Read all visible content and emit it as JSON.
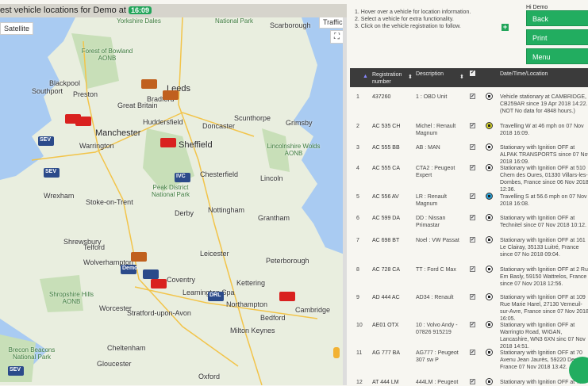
{
  "header": {
    "title": "est vehicle locations for Demo at",
    "time": "16:09"
  },
  "map": {
    "satellite_label": "Satellite",
    "traffic_label": "Traffic",
    "places": [
      {
        "name": "Leeds",
        "big": true
      },
      {
        "name": "Bradford"
      },
      {
        "name": "Manchester",
        "big": true
      },
      {
        "name": "Sheffield",
        "big": true
      },
      {
        "name": "Blackpool"
      },
      {
        "name": "Preston"
      },
      {
        "name": "Huddersfield"
      },
      {
        "name": "Warrington"
      },
      {
        "name": "Doncaster"
      },
      {
        "name": "Scunthorpe"
      },
      {
        "name": "Grimsby"
      },
      {
        "name": "Lincoln"
      },
      {
        "name": "Chesterfield"
      },
      {
        "name": "Stoke-on-Trent"
      },
      {
        "name": "Derby"
      },
      {
        "name": "Nottingham"
      },
      {
        "name": "Grantham"
      },
      {
        "name": "Wrexham"
      },
      {
        "name": "Shrewsbury"
      },
      {
        "name": "Leicester"
      },
      {
        "name": "Peterborough"
      },
      {
        "name": "Wolverhampton"
      },
      {
        "name": "Coventry"
      },
      {
        "name": "Northampton"
      },
      {
        "name": "Cambridge"
      },
      {
        "name": "Kettering"
      },
      {
        "name": "Bedford"
      },
      {
        "name": "Milton Keynes"
      },
      {
        "name": "Worcester"
      },
      {
        "name": "Cheltenham"
      },
      {
        "name": "Gloucester"
      },
      {
        "name": "Southport"
      },
      {
        "name": "Scarborough"
      },
      {
        "name": "Oxford"
      },
      {
        "name": "Telford"
      },
      {
        "name": "Great Britain"
      },
      {
        "name": "Stratford-upon-Avon"
      },
      {
        "name": "Leamington Spa"
      }
    ],
    "parks": [
      "Forest of Bowland AONB",
      "Peak District National Park",
      "Lincolnshire Wolds AONB",
      "Shropshire Hills AONB",
      "Brecon Beacons National Park",
      "Yorkshire Dales",
      "National Park"
    ],
    "vehicles": [
      {
        "label": "",
        "color": "#c0601e"
      },
      {
        "label": "",
        "color": "#c0601e"
      },
      {
        "label": "",
        "color": "#d9211f"
      },
      {
        "label": "SEV",
        "color": "#2b4a8a"
      },
      {
        "label": "",
        "color": "#d9211f"
      },
      {
        "label": "SEV",
        "color": "#2b4a8a"
      },
      {
        "label": "IVC",
        "color": "#2b4a8a"
      },
      {
        "label": "",
        "color": "#d9211f"
      },
      {
        "label": "Demo",
        "color": "#2b4a8a"
      },
      {
        "label": "",
        "color": "#c0601e"
      },
      {
        "label": "DRL",
        "color": "#2b4a8a"
      },
      {
        "label": "",
        "color": "#d9211f"
      },
      {
        "label": "",
        "color": "#d9211f"
      },
      {
        "label": "",
        "color": "#2b4a8a"
      },
      {
        "label": "SEV",
        "color": "#2b4a8a"
      }
    ]
  },
  "instructions": [
    "1. Hover over a vehicle for location information.",
    "2. Select a vehicle for extra functionality.",
    "3. Click on the vehicle registration to follow."
  ],
  "user": "Hi Demo",
  "buttons": {
    "back": "Back",
    "print": "Print",
    "menu": "Menu"
  },
  "table": {
    "headers": {
      "registration": "Registration number",
      "description": "Description",
      "datetime": "Date/Time/Location"
    },
    "rows": [
      {
        "n": "1",
        "reg": "437260",
        "desc": "1 : OBD Unit",
        "status": "paused",
        "loc": "Vehicle stationary at CAMBRIDGE, CB259AR since 19 Apr 2018 14:22. (NOT No data for 4848 hours.)"
      },
      {
        "n": "2",
        "reg": "AC 535 CH",
        "desc": "Michel : Renault Magnum",
        "status": "travelling-w",
        "loc": "Travelling W at 46 mph on 07 Nov 2018 16:09."
      },
      {
        "n": "3",
        "reg": "AC 555 BB",
        "desc": "AB : MAN",
        "status": "stopped",
        "loc": "Stationary with Ignition OFF at ALPAK TRANSPORTS since 07 Nov 2018 16:09."
      },
      {
        "n": "4",
        "reg": "AC 555 CA",
        "desc": "CTA2 : Peugeot Expert",
        "status": "stopped",
        "loc": "Stationary with Ignition OFF at 510 Chem des Oures, 01330 Villars-les-Dombes, France since 06 Nov 2018 12:36."
      },
      {
        "n": "5",
        "reg": "AC 556 AV",
        "desc": "LR : Renault Magnum",
        "status": "travelling-s",
        "loc": "Travelling S at 56.6 mph on 07 Nov 2018 16:08."
      },
      {
        "n": "6",
        "reg": "AC 599 DA",
        "desc": "DD : Nissan Primastar",
        "status": "stopped",
        "loc": "Stationary with Ignition OFF at Technitel since 07 Nov 2018 10:12."
      },
      {
        "n": "7",
        "reg": "AC 698 BT",
        "desc": "Noel : VW Passat",
        "status": "stopped",
        "loc": "Stationary with Ignition OFF at 161 Le Clairay, 35133 Luitré, France since 07 No 2018 09:04."
      },
      {
        "n": "8",
        "reg": "AC 728 CA",
        "desc": "TT : Ford C Max",
        "status": "stopped",
        "loc": "Stationary with Ignition OFF at 2 Rue Em Basly, 59150 Wattrelos, France since 07 Nov 2018 12:56."
      },
      {
        "n": "9",
        "reg": "AD 444 AC",
        "desc": "AD34 : Renault",
        "status": "stopped",
        "loc": "Stationary with Ignition OFF at 109 Rue Marie Harel, 27130 Verneuil-sur-Avre, France since 07 Nov 2018 16:05."
      },
      {
        "n": "10",
        "reg": "AE01 OTX",
        "desc": "10 : Volvo Andy - 07826 915219",
        "status": "stopped",
        "loc": "Stationary with Ignition OFF at Warringto Road, WIGAN, Lancashire, WN3 6XN sinc 07 Nov 2018 14:51."
      },
      {
        "n": "11",
        "reg": "AG 777 BA",
        "desc": "AG777 : Peugeot 307 sw P",
        "status": "stopped",
        "loc": "Stationary with Ignition OFF at 70 Avenu Jean Jaurès, 59220 Denain, France 07 Nov 2018 13:42."
      },
      {
        "n": "12",
        "reg": "AT 444 LM",
        "desc": "444LM : Peugeot",
        "status": "stopped",
        "loc": "Stationary with Ignition OFF at Te"
      }
    ]
  },
  "colors": {
    "accent": "#22ad60",
    "table_header": "#3b3b3b"
  }
}
